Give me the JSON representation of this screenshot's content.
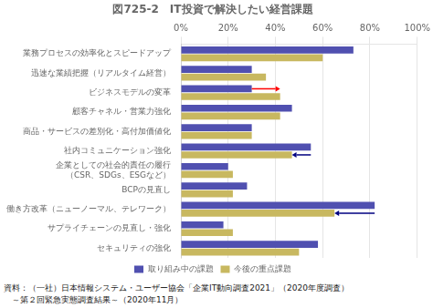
{
  "chart_data": {
    "type": "bar",
    "orientation": "horizontal",
    "title": "図725-2　IT投資で解決したい経営課題",
    "categories": [
      "業務プロセスの効率化とスピードアップ",
      "迅速な業績把握（リアルタイム経営）",
      "ビジネスモデルの変革",
      "顧客チャネル・営業力強化",
      "商品・サービスの差別化・高付加価値化",
      "社内コミュニケーション強化",
      "企業としての社会的責任の履行\n（CSR、SDGs、ESGなど）",
      "BCPの見直し",
      "働き方改革（ニューノーマル、テレワーク）",
      "サプライチェーンの見直し・強化",
      "セキュリティの強化"
    ],
    "series": [
      {
        "name": "取り組み中の課題",
        "color": "#5050b0",
        "values": [
          73,
          30,
          30,
          47,
          30,
          55,
          20,
          28,
          82,
          18,
          58
        ]
      },
      {
        "name": "今後の重点課題",
        "color": "#c8b860",
        "values": [
          60,
          36,
          42,
          42,
          30,
          47,
          22,
          22,
          65,
          22,
          50
        ]
      }
    ],
    "xlim": [
      0,
      100
    ],
    "xticks": [
      {
        "value": 0,
        "label": "0%"
      },
      {
        "value": 20,
        "label": "20%"
      },
      {
        "value": 40,
        "label": "40%"
      },
      {
        "value": 60,
        "label": "60%"
      },
      {
        "value": 80,
        "label": "80%"
      },
      {
        "value": 100,
        "label": "100%"
      }
    ],
    "grid": true,
    "legend": "bottom",
    "annotations": [
      {
        "type": "arrow",
        "category": "ビジネスモデルの変革",
        "series": "取り組み中の課題",
        "from": 30,
        "to": 42,
        "color": "red"
      },
      {
        "type": "arrow",
        "category": "社内コミュニケーション強化",
        "series": "今後の重点課題",
        "from": 55,
        "to": 47,
        "color": "navy"
      },
      {
        "type": "arrow",
        "category": "働き方改革（ニューノーマル、テレワーク）",
        "series": "今後の重点課題",
        "from": 82,
        "to": 65,
        "color": "navy"
      }
    ],
    "footnotes": [
      "資料：（一社）日本情報システム・ユーザー協会「企業IT動向調査2021」（2020年度調査）",
      "　～第２回緊急実態調査結果～（2020年11月）"
    ]
  }
}
